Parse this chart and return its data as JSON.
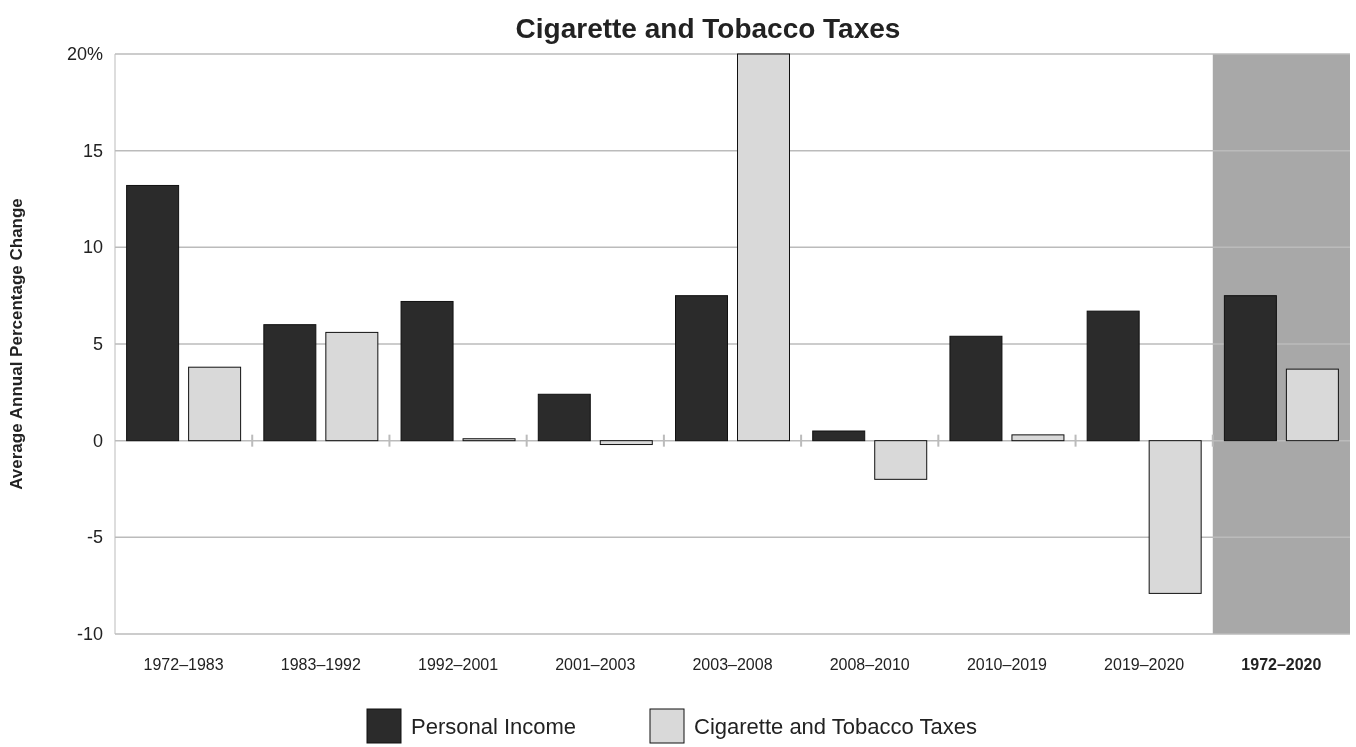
{
  "chart_data": {
    "type": "bar",
    "title": "Cigarette and Tobacco Taxes",
    "ylabel": "Average Annual Percentage Change",
    "categories": [
      "1972–1983",
      "1983–1992",
      "1992–2001",
      "2001–2003",
      "2003–2008",
      "2008–2010",
      "2010–2019",
      "2019–2020",
      "1972–2020"
    ],
    "series": [
      {
        "name": "Personal Income",
        "color": "#2b2b2b",
        "values": [
          13.2,
          6.0,
          7.2,
          2.4,
          7.5,
          0.5,
          5.4,
          6.7,
          7.5
        ]
      },
      {
        "name": "Cigarette and Tobacco Taxes",
        "color": "#d9d9d9",
        "values": [
          3.8,
          5.6,
          0.1,
          -0.2,
          20,
          -2.0,
          0.3,
          -7.9,
          3.7
        ]
      }
    ],
    "ylim": [
      -10,
      20
    ],
    "yticks": [
      -10,
      -5,
      0,
      5,
      10,
      15,
      {
        "value": 20,
        "label": "20%"
      }
    ],
    "grid": "y",
    "legend": "bottom",
    "bands": [
      {
        "axis": "x",
        "from": "1972–2020",
        "to": "1972–2020",
        "color": "#a8a8a8"
      }
    ]
  }
}
